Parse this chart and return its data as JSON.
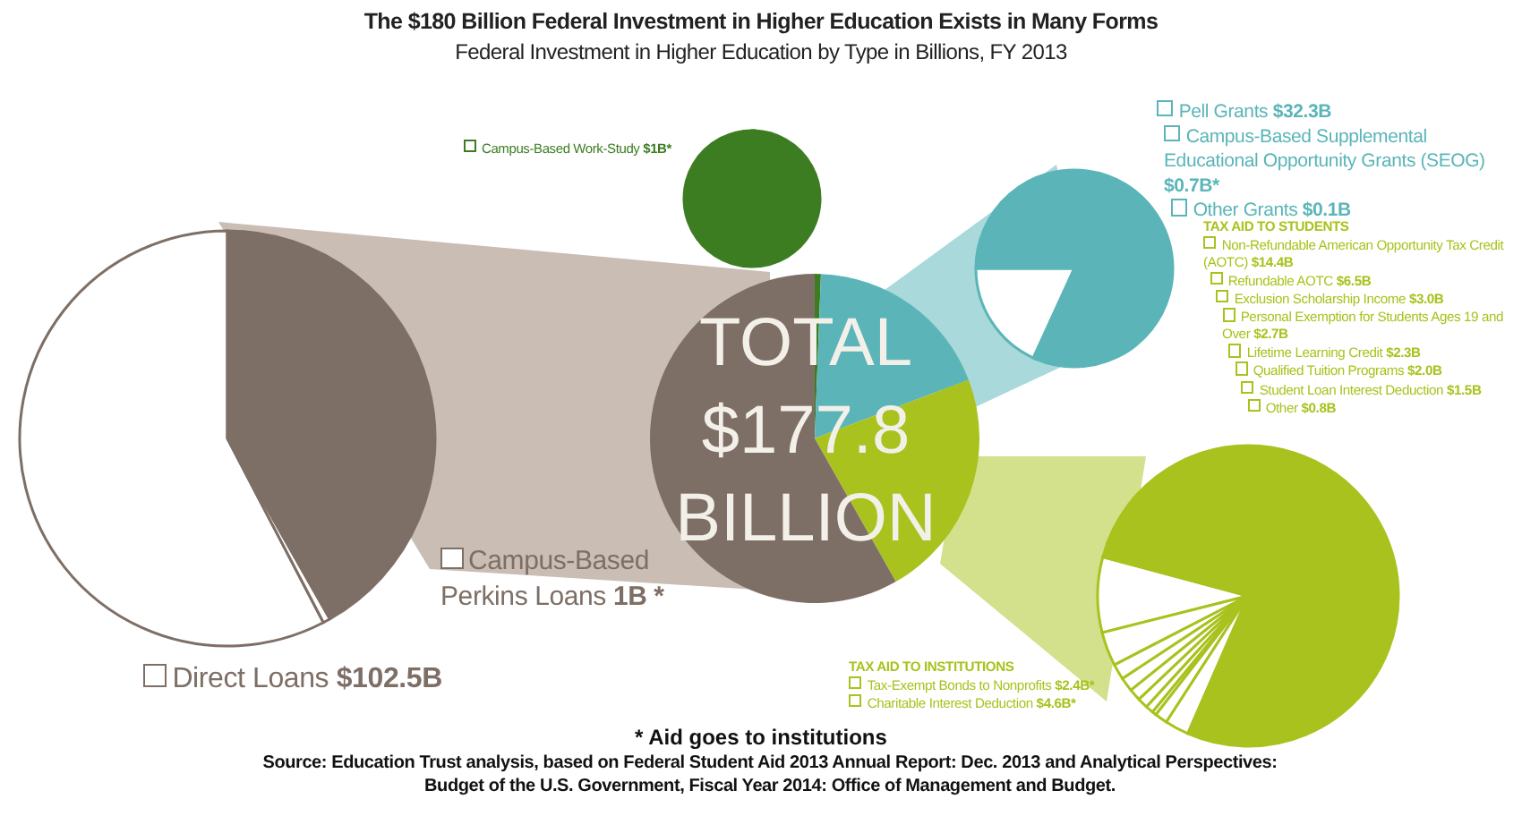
{
  "chart_data": [
    {
      "type": "pie",
      "title": "The $180 Billion Federal Investment in Higher Education Exists in Many Forms",
      "subtitle": "Federal Investment in Higher Education by Type in Billions, FY 2013",
      "categories": [
        null,
        null,
        null,
        null
      ],
      "values": [
        0.6,
        18.6,
        22.6,
        58.2
      ],
      "colors": [
        "#3d7d22",
        "#5bb5b8",
        "#a9c21d",
        "#7e6f66"
      ],
      "annotations": [
        "TOTAL $177.8 BILLION",
        "* Aid goes to institutions",
        "Source: Education Trust analysis, based on Federal Student Aid 2013 Annual Report: Dec. 2013 and Analytical Perspectives: Budget of the U.S. Government, Fiscal Year 2014: Office of Management and Budget."
      ]
    },
    {
      "type": "pie",
      "categories": [
        "Direct Loans",
        "Campus-Based Perkins Loans",
        null
      ],
      "values": [
        102.5,
        1,
        74.3
      ],
      "value_labels": [
        "$102.5B",
        "1B *",
        null
      ],
      "colors": [
        "#ffffff",
        "#ffffff",
        "#7e6f66"
      ],
      "legend": "bottom right"
    },
    {
      "type": "pie",
      "categories": [
        "Campus-Based Work-Study",
        null
      ],
      "values": [
        1,
        176.8
      ],
      "value_labels": [
        "$1B*",
        null
      ],
      "colors": [
        "#ffffff",
        "#3d7d22"
      ],
      "legend": "left"
    },
    {
      "type": "pie",
      "categories": [
        "Pell Grants",
        "Campus-Based Supplemental Educational Opportunity Grants (SEOG)",
        "Other Grants",
        null
      ],
      "values": [
        32.3,
        0.7,
        0.1,
        144.7
      ],
      "value_labels": [
        "$32.3B",
        "$0.7B*",
        "$0.1B",
        null
      ],
      "colors": [
        "#ffffff",
        "#ffffff",
        "#ffffff",
        "#5bb5b8"
      ],
      "legend": "top right"
    },
    {
      "type": "pie",
      "categories": [
        "Non-Refundable American Opportunity Tax Credit (AOTC)",
        "Refundable AOTC",
        "Exclusion Scholarship Income",
        "Personal Exemption for Students Ages 19 and Over",
        "Lifetime Learning Credit",
        "Qualified Tuition Programs",
        "Student Loan Interest Deduction",
        "Other",
        "Tax-Exempt Bonds to Nonprofits",
        "Charitable Interest Deduction",
        null
      ],
      "values": [
        14.4,
        6.5,
        3.0,
        2.7,
        2.3,
        2.0,
        1.5,
        0.8,
        2.4,
        4.6,
        137.6
      ],
      "value_labels": [
        "$14.4B",
        "$6.5B",
        "$3.0B",
        "$2.7B",
        "$2.3B",
        "$2.0B",
        "$1.5B",
        "$0.8B",
        "$2.4B*",
        "$4.6B*",
        null
      ],
      "colors": [
        "#ffffff",
        "#ffffff",
        "#ffffff",
        "#ffffff",
        "#ffffff",
        "#ffffff",
        "#ffffff",
        "#ffffff",
        "#ffffff",
        "#ffffff",
        "#a9c21d"
      ],
      "annotations": [
        "TAX AID TO STUDENTS",
        "TAX AID TO INSTITUTIONS"
      ],
      "legend": "top left"
    }
  ]
}
